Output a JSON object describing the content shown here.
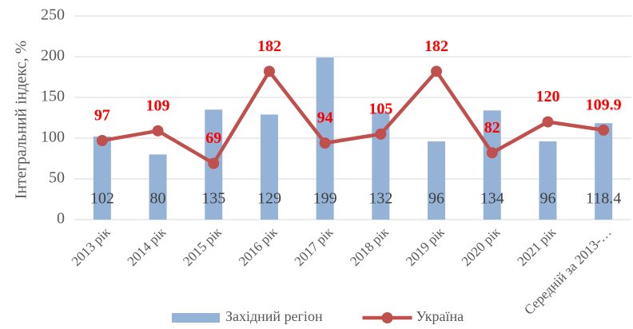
{
  "chart_data": {
    "type": "combo",
    "y_label": "Інтегральний індекс, %",
    "categories": [
      "2013 рік",
      "2014 рік",
      "2015 рік",
      "2016 рік",
      "2017 рік",
      "2018 рік",
      "2019 рік",
      "2020 рік",
      "2021 рік",
      "Середній за 2013-…"
    ],
    "series": [
      {
        "name": "Західний регіон",
        "type": "bar",
        "color": "#95b3d7",
        "values": [
          102,
          80,
          135,
          129,
          199,
          132,
          96,
          134,
          96,
          118.4
        ]
      },
      {
        "name": "Україна",
        "type": "line",
        "color": "#c0504d",
        "values": [
          97,
          109,
          69,
          182,
          94,
          105,
          182,
          82,
          120,
          109.9
        ]
      }
    ],
    "ylim": [
      0,
      250
    ],
    "yticks": [
      0,
      50,
      100,
      150,
      200,
      250
    ],
    "grid": true,
    "legend": "bottom"
  }
}
